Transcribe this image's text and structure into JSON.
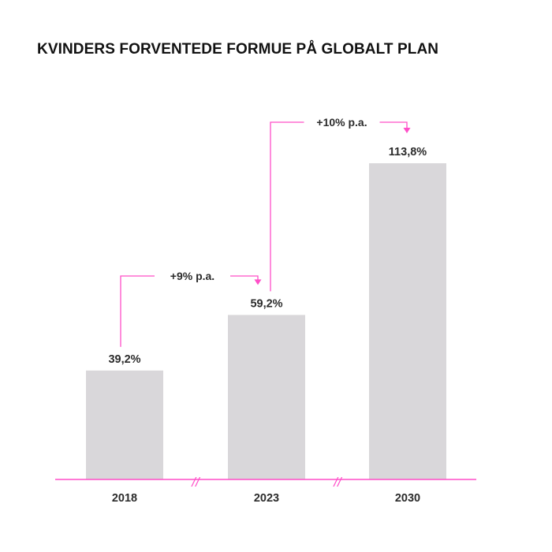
{
  "chart_data": {
    "type": "bar",
    "title": "KVINDERS FORVENTEDE FORMUE PÅ GLOBALT PLAN",
    "categories": [
      "2018",
      "2023",
      "2030"
    ],
    "values": [
      39.2,
      59.2,
      113.8
    ],
    "value_labels": [
      "39,2%",
      "59,2%",
      "113,8%"
    ],
    "growth_annotations": [
      {
        "from": "2018",
        "to": "2023",
        "label": "+9% p.a."
      },
      {
        "from": "2023",
        "to": "2030",
        "label": "+10% p.a."
      }
    ],
    "axis_breaks": [
      "//",
      "//"
    ],
    "xlabel": "",
    "ylabel": "",
    "ylim": [
      0,
      113.8
    ],
    "grid": false,
    "legend": "none",
    "colors": {
      "bar": "#d9d7da",
      "accent": "#ff4fc8",
      "text": "#2b2b2b"
    }
  }
}
